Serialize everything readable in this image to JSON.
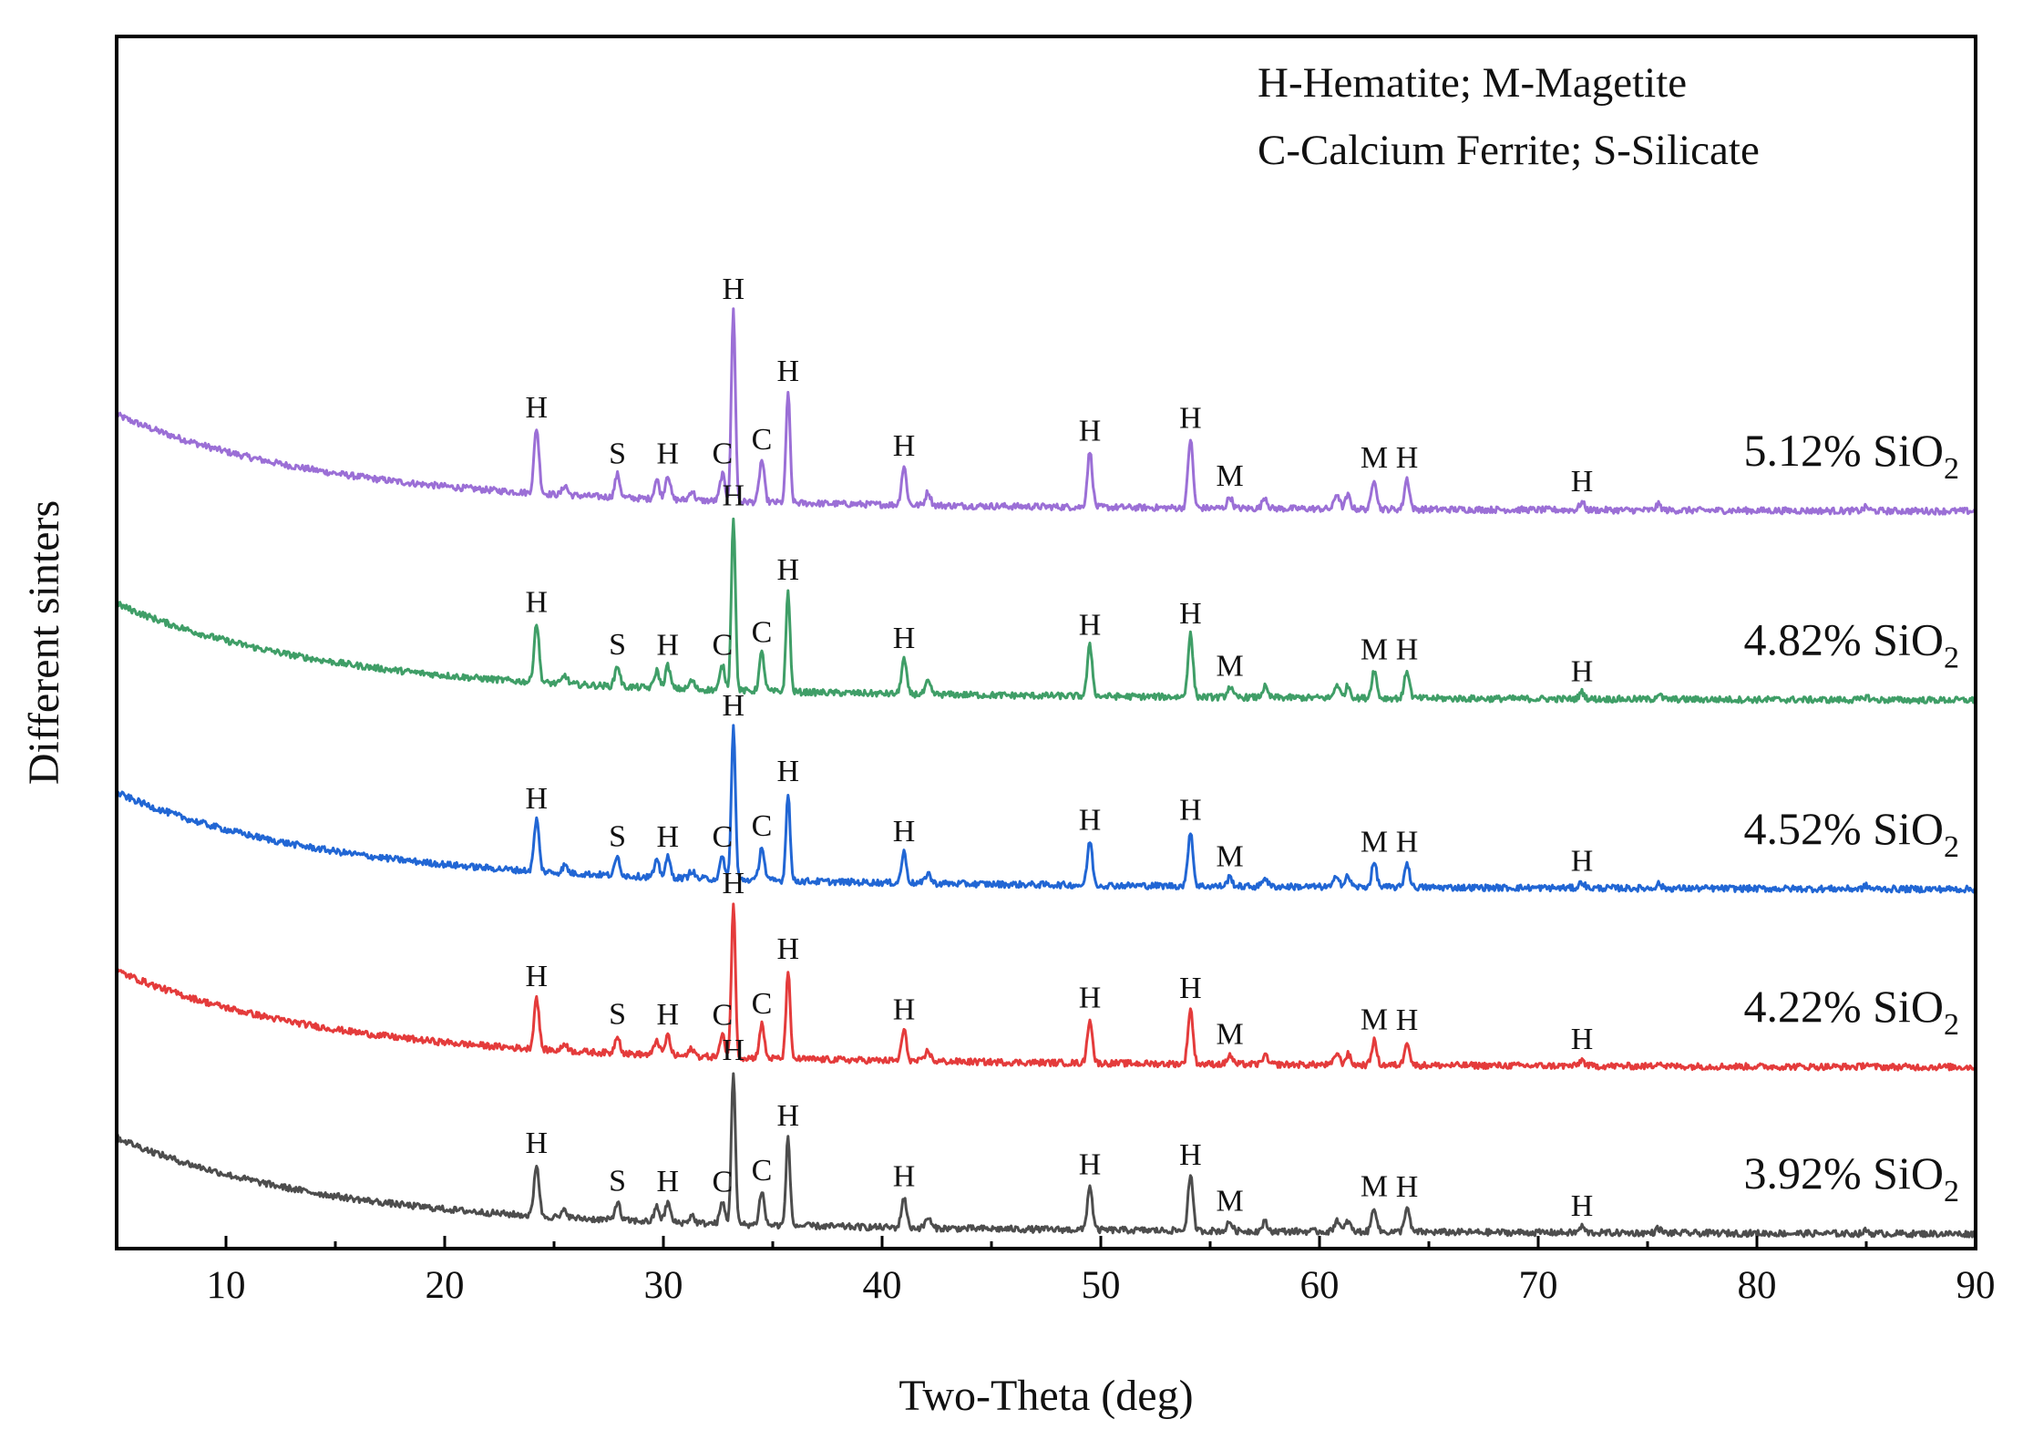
{
  "chart_data": {
    "type": "line",
    "xlabel": "Two-Theta (deg)",
    "ylabel": "Different sinters",
    "xlim": [
      5,
      90
    ],
    "x_ticks": [
      10,
      20,
      30,
      40,
      50,
      60,
      70,
      80,
      90
    ],
    "x_tick_labels": [
      "10",
      "20",
      "30",
      "40",
      "50",
      "60",
      "70",
      "80",
      "90"
    ],
    "y_ticks_visible": false,
    "legend": {
      "position": "top-right",
      "lines": [
        "H-Hematite; M-Magetite",
        "C-Calcium Ferrite; S-Silicate"
      ]
    },
    "peaks": [
      {
        "pos": 24.2,
        "label": "H",
        "rel": 0.34
      },
      {
        "pos": 25.5,
        "label": "",
        "rel": 0.05
      },
      {
        "pos": 27.9,
        "label": "S",
        "rel": 0.12
      },
      {
        "pos": 29.7,
        "label": "",
        "rel": 0.1
      },
      {
        "pos": 30.2,
        "label": "H",
        "rel": 0.13
      },
      {
        "pos": 31.3,
        "label": "",
        "rel": 0.05
      },
      {
        "pos": 32.7,
        "label": "C",
        "rel": 0.14
      },
      {
        "pos": 33.2,
        "label": "H",
        "rel": 1.0
      },
      {
        "pos": 34.5,
        "label": "C",
        "rel": 0.22
      },
      {
        "pos": 35.7,
        "label": "H",
        "rel": 0.58
      },
      {
        "pos": 41.0,
        "label": "H",
        "rel": 0.2
      },
      {
        "pos": 42.1,
        "label": "",
        "rel": 0.07
      },
      {
        "pos": 49.5,
        "label": "H",
        "rel": 0.29
      },
      {
        "pos": 54.1,
        "label": "H",
        "rel": 0.36
      },
      {
        "pos": 55.9,
        "label": "M",
        "rel": 0.06
      },
      {
        "pos": 57.5,
        "label": "",
        "rel": 0.06
      },
      {
        "pos": 60.8,
        "label": "",
        "rel": 0.08
      },
      {
        "pos": 61.3,
        "label": "",
        "rel": 0.07
      },
      {
        "pos": 62.5,
        "label": "M",
        "rel": 0.16
      },
      {
        "pos": 64.0,
        "label": "H",
        "rel": 0.16
      },
      {
        "pos": 72.0,
        "label": "H",
        "rel": 0.04
      },
      {
        "pos": 75.5,
        "label": "",
        "rel": 0.03
      },
      {
        "pos": 85.0,
        "label": "",
        "rel": 0.02
      }
    ],
    "series": [
      {
        "name": "5.12% SiO2",
        "label_main": "5.12% SiO",
        "label_sub": "2",
        "color": "#9b6fd6",
        "baseline": 0.65,
        "peak_height": 1.0
      },
      {
        "name": "4.82% SiO2",
        "label_main": "4.82% SiO",
        "label_sub": "2",
        "color": "#3f9e67",
        "baseline": 0.48,
        "peak_height": 0.91
      },
      {
        "name": "4.52% SiO2",
        "label_main": "4.52% SiO",
        "label_sub": "2",
        "color": "#2166d4",
        "baseline": 0.31,
        "peak_height": 0.8
      },
      {
        "name": "4.22% SiO2",
        "label_main": "4.22% SiO",
        "label_sub": "2",
        "color": "#e43b3b",
        "baseline": 0.15,
        "peak_height": 0.8
      },
      {
        "name": "3.92% SiO2",
        "label_main": "3.92% SiO",
        "label_sub": "2",
        "color": "#4d4d4d",
        "baseline": 0.0,
        "peak_height": 0.8
      }
    ]
  }
}
